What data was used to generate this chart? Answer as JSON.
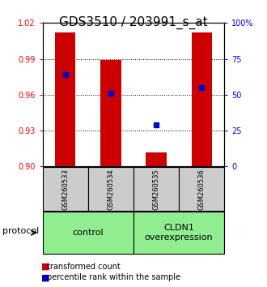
{
  "title": "GDS3510 / 203991_s_at",
  "samples": [
    "GSM260533",
    "GSM260534",
    "GSM260535",
    "GSM260536"
  ],
  "bar_values": [
    1.012,
    0.989,
    0.912,
    1.012
  ],
  "bar_bottom": 0.9,
  "blue_marker_values": [
    0.977,
    0.961,
    0.935,
    0.966
  ],
  "left_ylim": [
    0.9,
    1.02
  ],
  "left_yticks": [
    0.9,
    0.93,
    0.96,
    0.99,
    1.02
  ],
  "right_ylim": [
    0,
    100
  ],
  "right_yticks": [
    0,
    25,
    50,
    75,
    100
  ],
  "right_yticklabels": [
    "0",
    "25",
    "50",
    "75",
    "100%"
  ],
  "bar_color": "#cc0000",
  "blue_color": "#0000cc",
  "grid_color": "#000000",
  "group_labels": [
    "control",
    "CLDN1\noverexpression"
  ],
  "group_color": "#90ee90",
  "sample_box_color": "#cccccc",
  "legend_red_label": "transformed count",
  "legend_blue_label": "percentile rank within the sample",
  "protocol_label": "protocol",
  "title_fontsize": 11,
  "axis_fontsize": 7,
  "label_fontsize": 8
}
